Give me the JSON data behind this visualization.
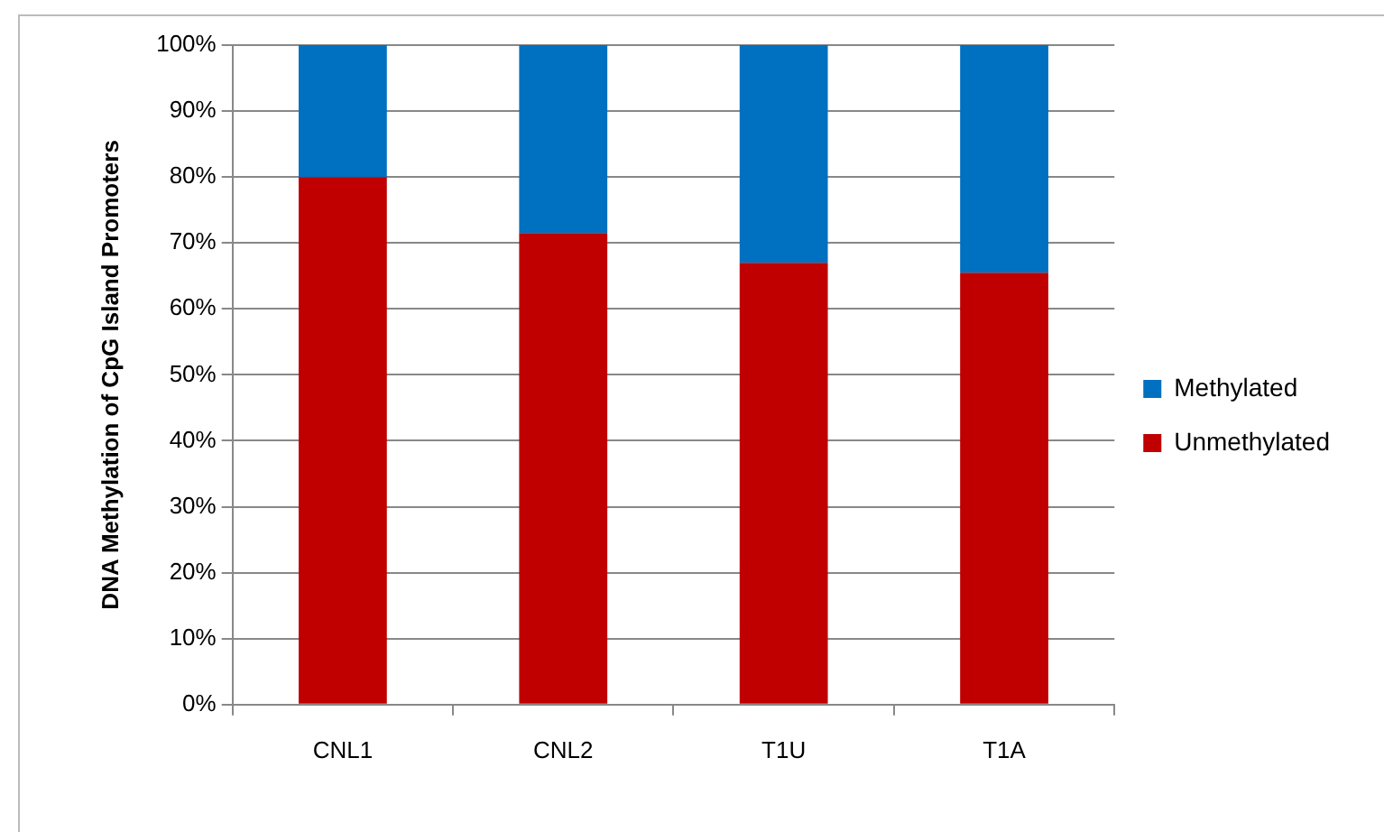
{
  "chart_data": {
    "type": "bar",
    "stacked": true,
    "ylabel": "DNA Methylation of CpG Island Promoters",
    "categories": [
      "CNL1",
      "CNL2",
      "T1U",
      "T1A"
    ],
    "series": [
      {
        "name": "Unmethylated",
        "color": "#c00000",
        "values": [
          80,
          71.5,
          67,
          65.5
        ]
      },
      {
        "name": "Methylated",
        "color": "#0070c0",
        "values": [
          20,
          28.5,
          33,
          34.5
        ]
      }
    ],
    "ylim": [
      0,
      100
    ],
    "yticks": [
      {
        "value": 0,
        "label": "0%"
      },
      {
        "value": 10,
        "label": "10%"
      },
      {
        "value": 20,
        "label": "20%"
      },
      {
        "value": 30,
        "label": "30%"
      },
      {
        "value": 40,
        "label": "40%"
      },
      {
        "value": 50,
        "label": "50%"
      },
      {
        "value": 60,
        "label": "60%"
      },
      {
        "value": 70,
        "label": "70%"
      },
      {
        "value": 80,
        "label": "80%"
      },
      {
        "value": 90,
        "label": "90%"
      },
      {
        "value": 100,
        "label": "100%"
      }
    ],
    "grid": "y",
    "legend": "right"
  }
}
